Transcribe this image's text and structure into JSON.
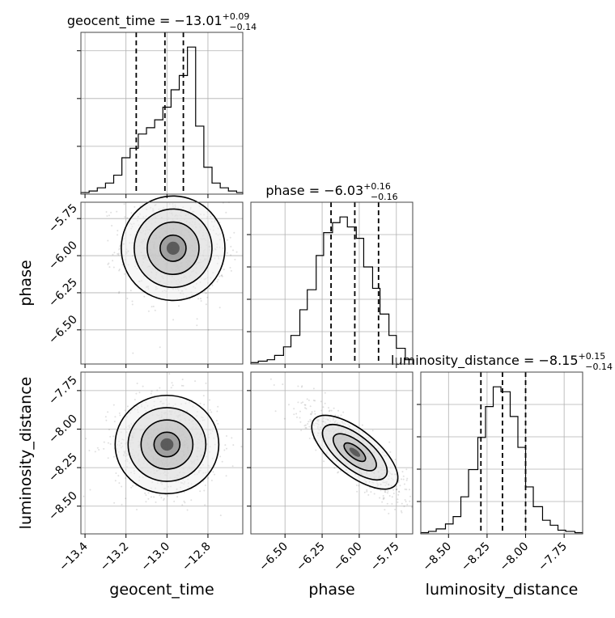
{
  "chart_data": {
    "type": "corner",
    "parameters": [
      {
        "name": "geocent_time",
        "median": -13.01,
        "plus": "+0.09",
        "minus": "−0.14",
        "quantiles": [
          -13.15,
          -13.01,
          -12.92
        ],
        "range": [
          -13.42,
          -12.63
        ],
        "ticks": [
          -13.4,
          -13.2,
          -13.0,
          -12.8
        ],
        "tick_labels": [
          "−13.4",
          "−13.2",
          "−13.0",
          "−12.8"
        ],
        "title_main": "geocent_time = −13.01",
        "axis_label": "geocent_time",
        "hist_bins": [
          -13.42,
          -13.38,
          -13.34,
          -13.3,
          -13.26,
          -13.22,
          -13.18,
          -13.14,
          -13.1,
          -13.06,
          -13.02,
          -12.98,
          -12.94,
          -12.9,
          -12.86,
          -12.82,
          -12.78,
          -12.74,
          -12.7,
          -12.66,
          -12.63
        ],
        "hist_counts": [
          1,
          2,
          4,
          7,
          12,
          23,
          29,
          38,
          42,
          47,
          55,
          66,
          75,
          93,
          43,
          17,
          7,
          4,
          2,
          1
        ]
      },
      {
        "name": "phase",
        "median": -6.03,
        "plus": "+0.16",
        "minus": "−0.16",
        "quantiles": [
          -6.19,
          -6.03,
          -5.87
        ],
        "range": [
          -6.73,
          -5.64
        ],
        "ticks": [
          -6.5,
          -6.25,
          -6.0,
          -5.75
        ],
        "tick_labels": [
          "−6.50",
          "−6.25",
          "−6.00",
          "−5.75"
        ],
        "title_main": "phase = −6.03",
        "axis_label": "phase",
        "hist_bins": [
          -6.73,
          -6.68,
          -6.62,
          -6.57,
          -6.51,
          -6.46,
          -6.4,
          -6.35,
          -6.29,
          -6.24,
          -6.18,
          -6.13,
          -6.08,
          -6.02,
          -5.97,
          -5.91,
          -5.86,
          -5.8,
          -5.75,
          -5.69,
          -5.64
        ],
        "hist_counts": [
          1,
          2,
          3,
          6,
          12,
          20,
          38,
          52,
          76,
          92,
          99,
          103,
          96,
          88,
          68,
          53,
          35,
          20,
          11,
          3
        ]
      },
      {
        "name": "luminosity_distance",
        "median": -8.15,
        "plus": "+0.15",
        "minus": "−0.14",
        "quantiles": [
          -8.29,
          -8.15,
          -8.0
        ],
        "range": [
          -8.68,
          -7.63
        ],
        "ticks": [
          -8.5,
          -8.25,
          -8.0,
          -7.75
        ],
        "tick_labels": [
          "−8.50",
          "−8.25",
          "−8.00",
          "−7.75"
        ],
        "title_main": "luminosity_distance = −8.15",
        "axis_label": "luminosity_distance",
        "hist_bins": [
          -8.68,
          -8.63,
          -8.58,
          -8.52,
          -8.47,
          -8.42,
          -8.37,
          -8.31,
          -8.26,
          -8.21,
          -8.16,
          -8.1,
          -8.05,
          -8.0,
          -7.95,
          -7.89,
          -7.84,
          -7.79,
          -7.74,
          -7.68,
          -7.63
        ],
        "hist_counts": [
          1,
          2,
          4,
          8,
          14,
          30,
          52,
          78,
          103,
          119,
          115,
          95,
          70,
          38,
          22,
          11,
          7,
          3,
          2,
          1
        ]
      }
    ],
    "pair_centers": {
      "phase_vs_geocent_time": {
        "x": -12.97,
        "y": -5.95,
        "corr": -0.1
      },
      "luminosity_distance_vs_geocent_time": {
        "x": -13.0,
        "y": -8.1,
        "corr": 0.0
      },
      "luminosity_distance_vs_phase": {
        "x": -6.03,
        "y": -8.15,
        "corr": -0.85
      }
    },
    "grid": true,
    "colors": {
      "line": "#000000",
      "grid": "#b0b0b0",
      "points": "#555555"
    }
  }
}
